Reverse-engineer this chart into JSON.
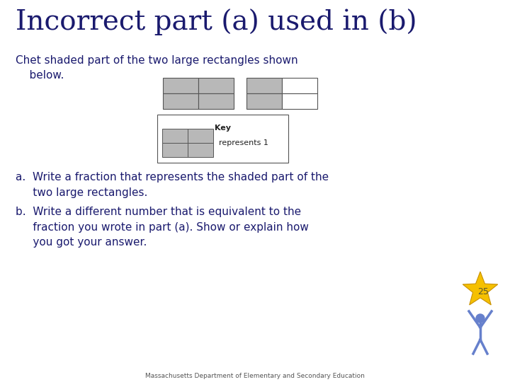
{
  "title": "Incorrect part (a) used in (b)",
  "title_color": "#1a1a6e",
  "title_fontsize": 28,
  "body_text_color": "#1a1a6e",
  "bg_color": "#ffffff",
  "shaded_color": "#b8b8b8",
  "rect_border_color": "#555555",
  "star_color": "#f5c000",
  "star_edge_color": "#c89000",
  "person_color": "#6680cc",
  "number_25": "25",
  "footer_text": "Massachusetts Department of Elementary and Secondary Education",
  "footer_color": "#555555",
  "body_fontsize": 11,
  "key_text": "Key",
  "represents_text": "represents 1",
  "text_a": "a.  Write a fraction that represents the shaded part of the\n     two large rectangles.",
  "text_b": "b.  Write a different number that is equivalent to the\n     fraction you wrote in part (a). Show or explain how\n     you got your answer.",
  "intro_text": "Chet shaded part of the two large rectangles shown\n    below."
}
